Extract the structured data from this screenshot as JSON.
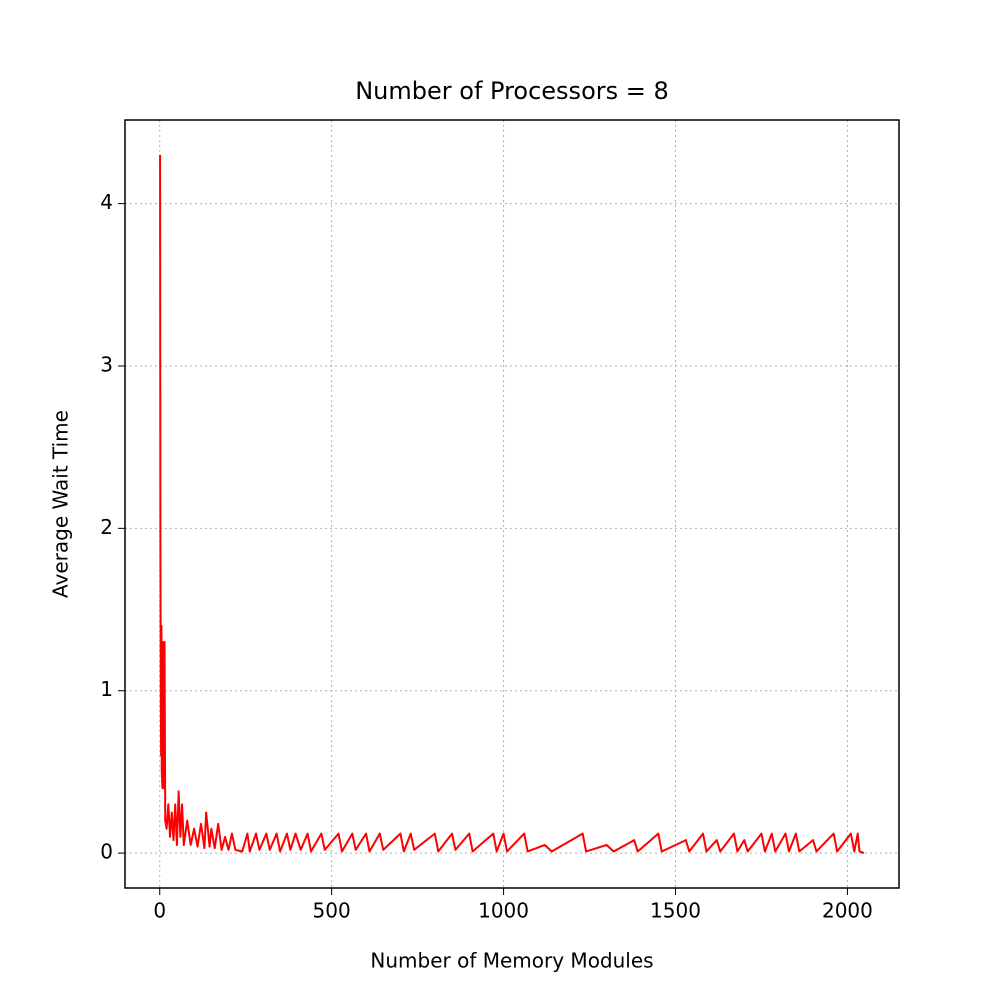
{
  "chart_data": {
    "type": "line",
    "title": "Number of Processors = 8",
    "x_label": "Number of Memory Modules",
    "y_label": "Average Wait Time",
    "x": [
      1,
      2,
      3,
      4,
      5,
      6,
      8,
      10,
      12,
      14,
      16,
      20,
      25,
      30,
      35,
      40,
      45,
      50,
      55,
      60,
      65,
      70,
      80,
      90,
      100,
      110,
      120,
      130,
      135,
      145,
      150,
      160,
      170,
      180,
      190,
      200,
      210,
      220,
      240,
      255,
      262,
      280,
      290,
      310,
      320,
      340,
      350,
      370,
      380,
      395,
      410,
      430,
      440,
      470,
      480,
      520,
      530,
      560,
      570,
      600,
      610,
      640,
      650,
      700,
      710,
      730,
      740,
      800,
      810,
      850,
      860,
      900,
      910,
      970,
      980,
      1000,
      1010,
      1060,
      1070,
      1120,
      1140,
      1230,
      1240,
      1300,
      1320,
      1380,
      1390,
      1450,
      1460,
      1530,
      1540,
      1580,
      1590,
      1620,
      1630,
      1670,
      1680,
      1700,
      1710,
      1750,
      1760,
      1780,
      1790,
      1820,
      1830,
      1850,
      1860,
      1900,
      1910,
      1960,
      1970,
      2010,
      2020,
      2030,
      2035,
      2048
    ],
    "series": [
      {
        "name": "Average Wait Time",
        "color": "#ff0000",
        "values": [
          4.3,
          2.0,
          1.0,
          0.6,
          1.4,
          0.5,
          0.4,
          1.3,
          0.4,
          1.3,
          0.2,
          0.15,
          0.3,
          0.1,
          0.25,
          0.08,
          0.3,
          0.05,
          0.38,
          0.1,
          0.3,
          0.05,
          0.2,
          0.05,
          0.15,
          0.04,
          0.18,
          0.03,
          0.25,
          0.04,
          0.15,
          0.03,
          0.18,
          0.02,
          0.1,
          0.02,
          0.12,
          0.02,
          0.01,
          0.12,
          0.01,
          0.12,
          0.02,
          0.12,
          0.02,
          0.12,
          0.01,
          0.12,
          0.02,
          0.12,
          0.02,
          0.12,
          0.01,
          0.12,
          0.02,
          0.12,
          0.01,
          0.12,
          0.02,
          0.12,
          0.01,
          0.12,
          0.02,
          0.12,
          0.01,
          0.12,
          0.02,
          0.12,
          0.01,
          0.12,
          0.02,
          0.12,
          0.01,
          0.12,
          0.01,
          0.12,
          0.01,
          0.12,
          0.01,
          0.05,
          0.01,
          0.12,
          0.01,
          0.05,
          0.01,
          0.08,
          0.01,
          0.12,
          0.01,
          0.08,
          0.01,
          0.12,
          0.01,
          0.08,
          0.01,
          0.12,
          0.01,
          0.08,
          0.01,
          0.12,
          0.01,
          0.12,
          0.01,
          0.12,
          0.01,
          0.12,
          0.01,
          0.08,
          0.01,
          0.12,
          0.01,
          0.12,
          0.01,
          0.12,
          0.01,
          0.0
        ]
      }
    ],
    "xlim": [
      -101,
      2150
    ],
    "ylim": [
      -0.215,
      4.515
    ],
    "xticks": [
      0,
      500,
      1000,
      1500,
      2000
    ],
    "yticks": [
      0,
      1,
      2,
      3,
      4
    ],
    "grid": true
  }
}
